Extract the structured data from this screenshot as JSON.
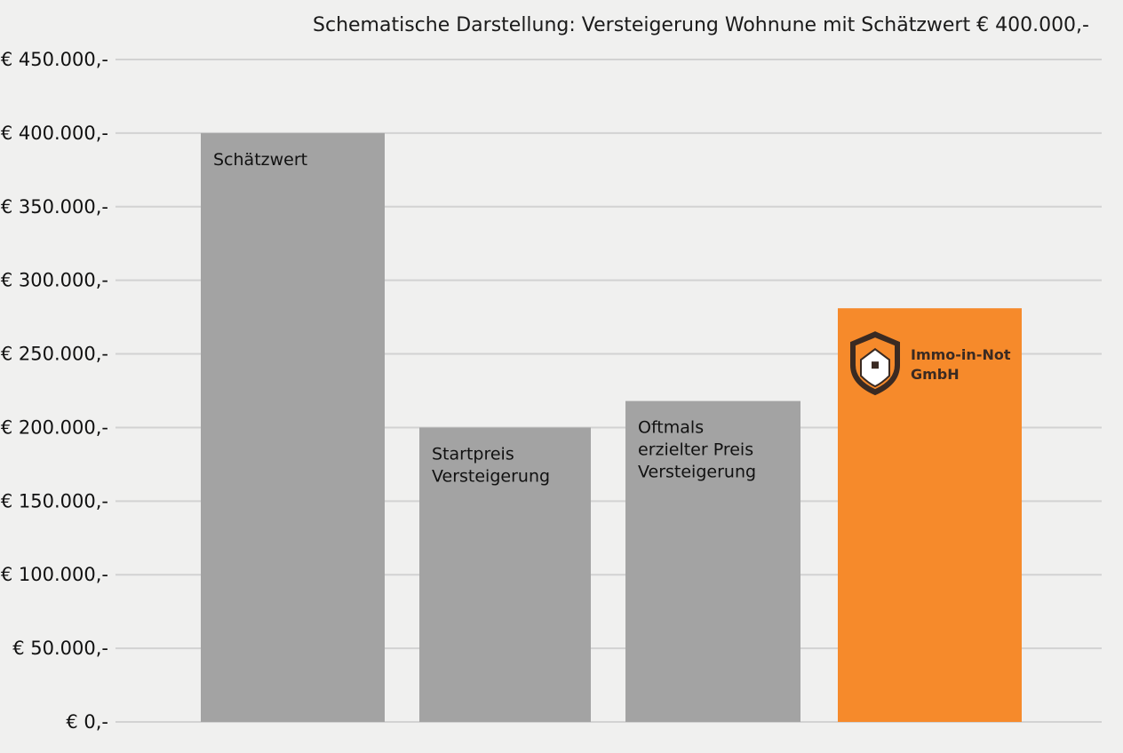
{
  "chart_data": {
    "type": "bar",
    "title": "Schematische Darstellung: Versteigerung Wohnune mit Schätzwert € 400.000,-",
    "xlabel": "",
    "ylabel": "",
    "ylim": [
      0,
      450000
    ],
    "y_ticks": [
      {
        "value": 0,
        "label": "€ 0,-"
      },
      {
        "value": 50000,
        "label": "€ 50.000,-"
      },
      {
        "value": 100000,
        "label": "€ 100.000,-"
      },
      {
        "value": 150000,
        "label": "€ 150.000,-"
      },
      {
        "value": 200000,
        "label": "€ 200.000,-"
      },
      {
        "value": 250000,
        "label": "€ 250.000,-"
      },
      {
        "value": 300000,
        "label": "€ 300.000,-"
      },
      {
        "value": 350000,
        "label": "€ 350.000,-"
      },
      {
        "value": 400000,
        "label": "€ 400.000,-"
      },
      {
        "value": 450000,
        "label": "€ 450.000,-"
      }
    ],
    "grid": true,
    "legend": "none",
    "bars": [
      {
        "label_lines": [
          "Schätzwert"
        ],
        "value": 400000,
        "color": "#a3a3a3"
      },
      {
        "label_lines": [
          "Startpreis",
          "Versteigerung"
        ],
        "value": 200000,
        "color": "#a3a3a3"
      },
      {
        "label_lines": [
          "Oftmals",
          "erzielter Preis",
          "Versteigerung"
        ],
        "value": 218000,
        "color": "#a3a3a3"
      },
      {
        "label_lines": [],
        "value": 281000,
        "color": "#f68a2b",
        "logo_lines": [
          "Immo-in-Not",
          "GmbH"
        ]
      }
    ]
  }
}
